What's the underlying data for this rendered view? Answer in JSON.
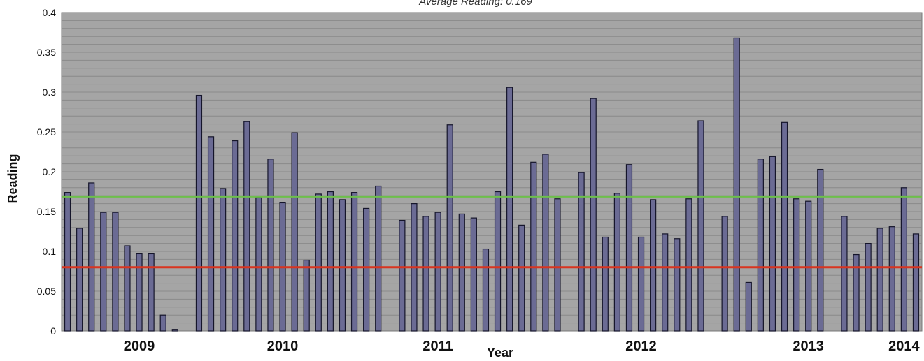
{
  "chart_data": {
    "type": "bar",
    "top_text": "Average Reading: 0.169",
    "xlabel": "Year",
    "ylabel": "Reading",
    "ylim": [
      0,
      0.4
    ],
    "yticks": [
      0,
      0.05,
      0.1,
      0.15,
      0.2,
      0.25,
      0.3,
      0.35,
      0.4
    ],
    "ytick_labels": [
      "0",
      "0.05",
      "0.1",
      "0.15",
      "0.2",
      "0.25",
      "0.3",
      "0.35",
      "0.4"
    ],
    "grid": true,
    "year_labels": [
      {
        "label": "2009",
        "bar_index": 6
      },
      {
        "label": "2010",
        "bar_index": 18
      },
      {
        "label": "2011",
        "bar_index": 31
      },
      {
        "label": "2012",
        "bar_index": 48
      },
      {
        "label": "2013",
        "bar_index": 62
      },
      {
        "label": "2014",
        "bar_index": 70
      }
    ],
    "values": [
      0.174,
      0.129,
      0.186,
      0.149,
      0.149,
      0.107,
      0.097,
      0.097,
      0.02,
      0.002,
      null,
      0.296,
      0.244,
      0.179,
      0.239,
      0.263,
      0.168,
      0.216,
      0.161,
      0.249,
      0.089,
      0.172,
      0.175,
      0.165,
      0.174,
      0.154,
      0.182,
      null,
      0.139,
      0.16,
      0.144,
      0.149,
      0.259,
      0.147,
      0.142,
      0.103,
      0.175,
      0.306,
      0.133,
      0.212,
      0.222,
      0.166,
      null,
      0.199,
      0.292,
      0.118,
      0.173,
      0.209,
      0.118,
      0.165,
      0.122,
      0.116,
      0.166,
      0.264,
      null,
      0.144,
      0.368,
      0.061,
      0.216,
      0.219,
      0.262,
      0.166,
      0.163,
      0.203,
      null,
      0.144,
      0.096,
      0.11,
      0.129,
      0.131,
      0.18,
      0.122
    ],
    "reference_lines": [
      {
        "value": 0.169,
        "color": "#6dbf4b"
      },
      {
        "value": 0.08,
        "color": "#d9341f"
      }
    ],
    "colors": {
      "bar_fill": "#6b6b94",
      "bar_stroke": "#15152a",
      "plot_background": "#a5a5a5",
      "grid": "#8a8a8a"
    }
  }
}
